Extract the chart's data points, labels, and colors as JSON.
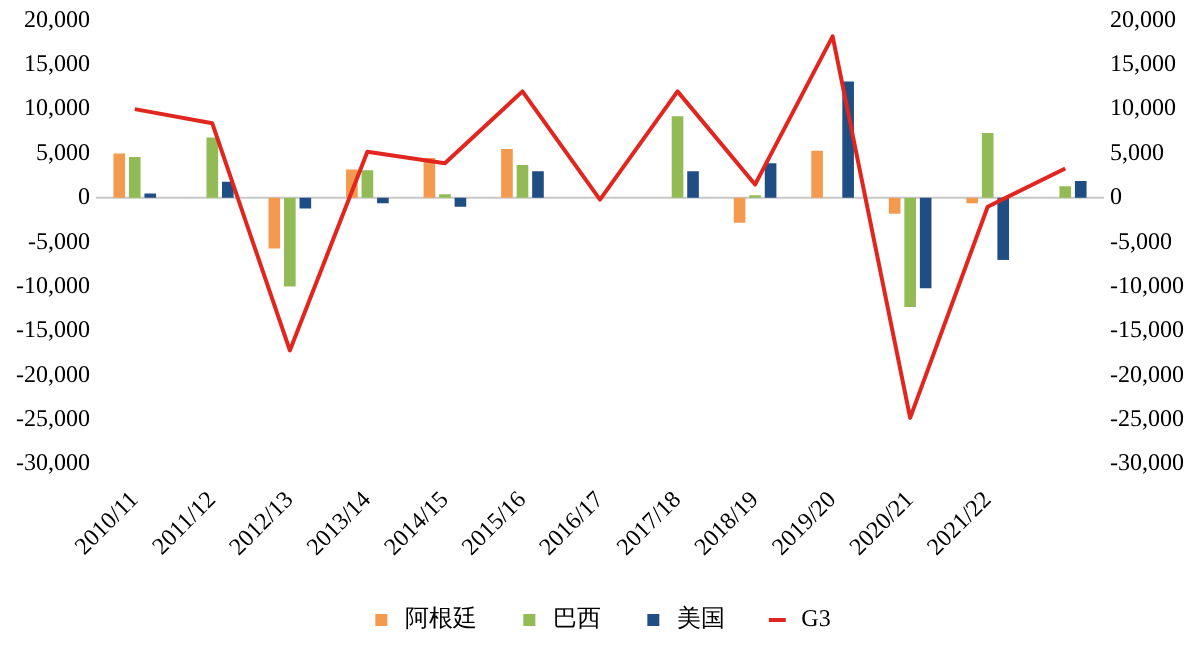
{
  "chart_data": {
    "type": "bar",
    "categories": [
      "2010/11",
      "2011/12",
      "2012/13",
      "2013/14",
      "2014/15",
      "2015/16",
      "2016/17",
      "2017/18",
      "2018/19",
      "2019/20",
      "2020/21",
      "2021/22",
      null
    ],
    "series": [
      {
        "name": "阿根廷",
        "color": "#f39a4f",
        "values": [
          5000,
          0,
          -5700,
          3200,
          4500,
          5500,
          0,
          0,
          -2800,
          5300,
          -1800,
          -600,
          0
        ]
      },
      {
        "name": "巴西",
        "color": "#92bb55",
        "values": [
          4600,
          6800,
          -10000,
          3100,
          400,
          3700,
          0,
          9200,
          300,
          0,
          -12300,
          7300,
          1300
        ]
      },
      {
        "name": "美国",
        "color": "#1f4e85",
        "values": [
          500,
          1800,
          -1200,
          -600,
          -1000,
          3000,
          0,
          3000,
          3900,
          13100,
          -10200,
          -7000,
          1900
        ]
      },
      {
        "name": "G3",
        "type": "line",
        "color": "#e0261e",
        "values": [
          10000,
          8400,
          -17200,
          5200,
          3900,
          12000,
          -200,
          12000,
          1500,
          18200,
          -24800,
          -1000,
          3300
        ]
      }
    ],
    "ylim": [
      -30000,
      20000
    ],
    "yticks": [
      {
        "value": -30000,
        "label": "-30,000"
      },
      {
        "value": -25000,
        "label": "-25,000"
      },
      {
        "value": -20000,
        "label": "-20,000"
      },
      {
        "value": -15000,
        "label": "-15,000"
      },
      {
        "value": -10000,
        "label": "-10,000"
      },
      {
        "value": -5000,
        "label": "-5,000"
      },
      0,
      {
        "value": 5000,
        "label": "5,000"
      },
      {
        "value": 10000,
        "label": "10,000"
      },
      {
        "value": 15000,
        "label": "15,000"
      },
      {
        "value": 20000,
        "label": "20,000"
      }
    ],
    "y2lim": [
      -30000,
      20000
    ],
    "y2ticks": [
      {
        "value": -30000,
        "label": "-30,000"
      },
      {
        "value": -25000,
        "label": "-25,000"
      },
      {
        "value": -20000,
        "label": "-20,000"
      },
      {
        "value": -15000,
        "label": "-15,000"
      },
      {
        "value": -10000,
        "label": "-10,000"
      },
      {
        "value": -5000,
        "label": "-5,000"
      },
      0,
      {
        "value": 5000,
        "label": "5,000"
      },
      {
        "value": 10000,
        "label": "10,000"
      },
      {
        "value": 15000,
        "label": "15,000"
      },
      {
        "value": 20000,
        "label": "20,000"
      }
    ],
    "legend": "bottom",
    "marker": "none"
  }
}
